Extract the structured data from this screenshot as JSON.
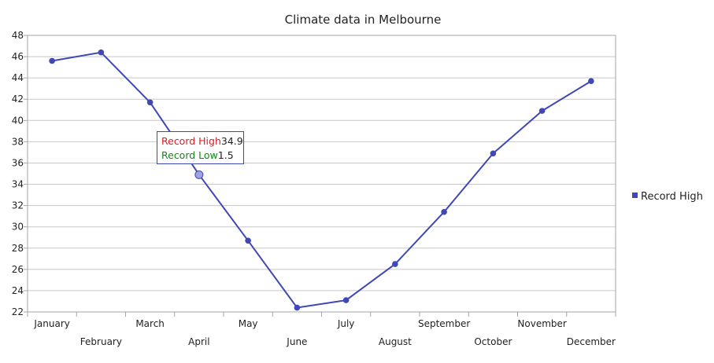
{
  "chart_data": {
    "type": "line",
    "title": "Climate data in Melbourne",
    "categories": [
      "January",
      "February",
      "March",
      "April",
      "May",
      "June",
      "July",
      "August",
      "September",
      "October",
      "November",
      "December"
    ],
    "series": [
      {
        "name": "Record High",
        "values": [
          45.6,
          46.4,
          41.7,
          34.9,
          28.7,
          22.4,
          23.1,
          26.5,
          31.4,
          36.9,
          40.9,
          43.7
        ],
        "color": "#3f48b4"
      }
    ],
    "ylim": [
      22,
      48
    ],
    "yticks": [
      "22",
      "24",
      "26",
      "28",
      "30",
      "32",
      "34",
      "36",
      "38",
      "40",
      "42",
      "44",
      "46",
      "48"
    ],
    "grid": true,
    "legend_position": "right",
    "highlighted_category": "April",
    "tooltip": {
      "high_label": "Record High",
      "high_value": "34.9",
      "low_label": "Record Low",
      "low_value": "1.5",
      "high_color": "#e8161b",
      "low_color": "#15861a"
    }
  }
}
